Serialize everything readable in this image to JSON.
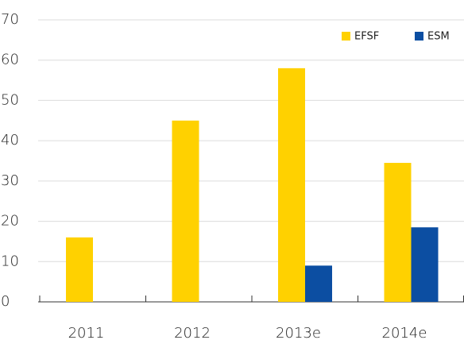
{
  "chart_data": {
    "type": "bar",
    "categories": [
      "2011",
      "2012",
      "2013e",
      "2014e"
    ],
    "series": [
      {
        "name": "EFSF",
        "color": "#ffd100",
        "values": [
          16,
          45,
          58,
          34.5
        ]
      },
      {
        "name": "ESM",
        "color": "#0c4ea2",
        "values": [
          null,
          null,
          9,
          18.5
        ]
      }
    ],
    "ylim": [
      0,
      70
    ],
    "yticks": [
      0,
      10,
      20,
      30,
      40,
      50,
      60,
      70
    ],
    "grid": true,
    "legend": "top-right"
  }
}
